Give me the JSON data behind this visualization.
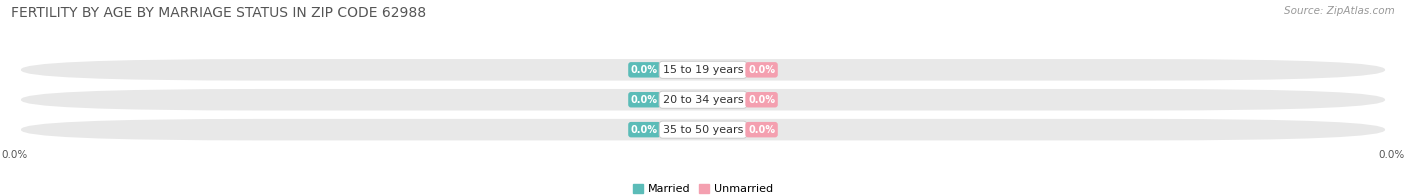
{
  "title": "FERTILITY BY AGE BY MARRIAGE STATUS IN ZIP CODE 62988",
  "source": "Source: ZipAtlas.com",
  "categories": [
    "15 to 19 years",
    "20 to 34 years",
    "35 to 50 years"
  ],
  "married_values": [
    0.0,
    0.0,
    0.0
  ],
  "unmarried_values": [
    0.0,
    0.0,
    0.0
  ],
  "married_color": "#5bbcb8",
  "unmarried_color": "#f4a0b0",
  "married_label": "Married",
  "unmarried_label": "Unmarried",
  "row_bg_color": "#e8e8e8",
  "value_label": "0.0%",
  "axis_label_left": "0.0%",
  "axis_label_right": "0.0%",
  "background_color": "#ffffff",
  "title_fontsize": 10,
  "source_fontsize": 7.5,
  "cat_fontsize": 8,
  "val_fontsize": 7
}
